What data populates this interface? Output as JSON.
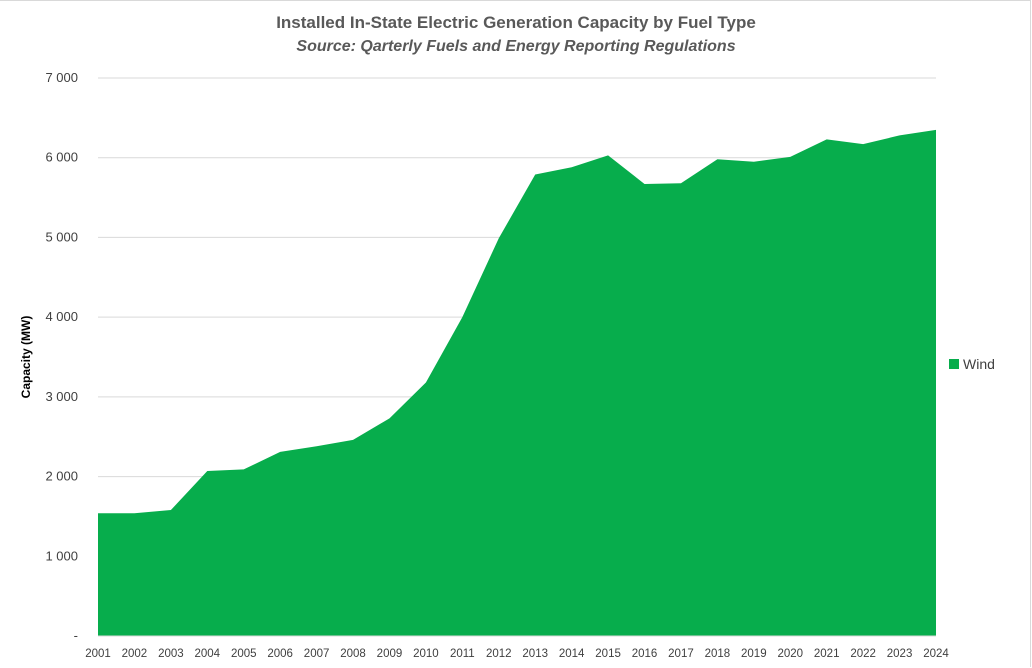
{
  "chart_data": {
    "type": "area",
    "title": "Installed In-State Electric Generation Capacity by Fuel Type",
    "subtitle": "Source: Qarterly Fuels and Energy Reporting Regulations",
    "xlabel": "",
    "ylabel": "Capacity (MW)",
    "ylim": [
      0,
      7000
    ],
    "y_ticks": [
      {
        "value": 0,
        "label": "-"
      },
      {
        "value": 1000,
        "label": "1 000"
      },
      {
        "value": 2000,
        "label": "2 000"
      },
      {
        "value": 3000,
        "label": "3 000"
      },
      {
        "value": 4000,
        "label": "4 000"
      },
      {
        "value": 5000,
        "label": "5 000"
      },
      {
        "value": 6000,
        "label": "6 000"
      },
      {
        "value": 7000,
        "label": "7 000"
      }
    ],
    "categories": [
      "2001",
      "2002",
      "2003",
      "2004",
      "2005",
      "2006",
      "2007",
      "2008",
      "2009",
      "2010",
      "2011",
      "2012",
      "2013",
      "2014",
      "2015",
      "2016",
      "2017",
      "2018",
      "2019",
      "2020",
      "2021",
      "2022",
      "2023",
      "2024"
    ],
    "series": [
      {
        "name": "Wind",
        "color": "#07ad4c",
        "values": [
          1540,
          1540,
          1580,
          2070,
          2090,
          2310,
          2380,
          2460,
          2730,
          3180,
          4000,
          4990,
          5790,
          5880,
          6030,
          5670,
          5680,
          5980,
          5950,
          6010,
          6230,
          6170,
          6280,
          6350
        ]
      }
    ],
    "legend": "right",
    "grid": true
  }
}
